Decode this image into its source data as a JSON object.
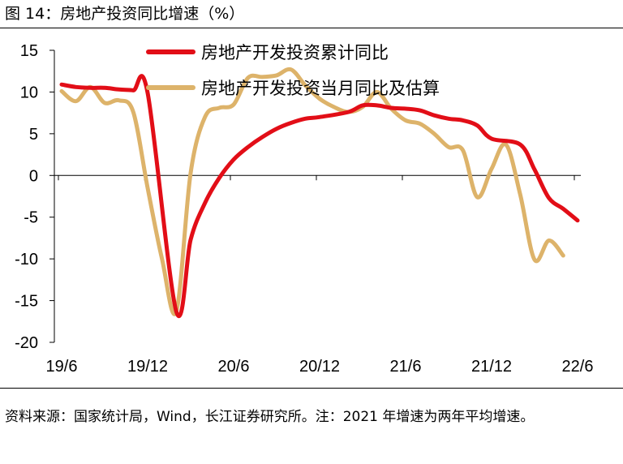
{
  "figure": {
    "title": "图 14：房地产投资同比增速（%）",
    "source": "资料来源：国家统计局，Wind，长江证券研究所。注：2021 年增速为两年平均增速。"
  },
  "chart_data": {
    "type": "line",
    "title": "",
    "xlabel": "",
    "ylabel": "",
    "ylim": [
      -20,
      15
    ],
    "yticks": [
      15,
      10,
      5,
      0,
      -5,
      -10,
      -15,
      -20
    ],
    "xtick_labels": [
      "19/6",
      "19/12",
      "20/6",
      "20/12",
      "21/6",
      "21/12",
      "22/6"
    ],
    "xtick_index": [
      0,
      6,
      12,
      18,
      24,
      30,
      36
    ],
    "grid": false,
    "legend": "top-center",
    "x": [
      "19/6",
      "19/7",
      "19/8",
      "19/9",
      "19/10",
      "19/11",
      "19/12",
      "20/1",
      "20/2",
      "20/3",
      "20/4",
      "20/5",
      "20/6",
      "20/7",
      "20/8",
      "20/9",
      "20/10",
      "20/11",
      "20/12",
      "21/1",
      "21/2",
      "21/3",
      "21/4",
      "21/5",
      "21/6",
      "21/7",
      "21/8",
      "21/9",
      "21/10",
      "21/11",
      "21/12",
      "22/1",
      "22/2",
      "22/3",
      "22/4",
      "22/5",
      "22/6"
    ],
    "series": [
      {
        "name": "房地产开发投资累计同比",
        "color": "#e20e17",
        "values": [
          10.9,
          10.6,
          10.5,
          10.5,
          10.3,
          10.2,
          9.9,
          null,
          -16.3,
          -7.7,
          -3.3,
          -0.3,
          1.9,
          3.4,
          4.6,
          5.6,
          6.3,
          6.8,
          7.0,
          null,
          7.6,
          8.4,
          8.4,
          8.1,
          8.0,
          7.8,
          7.2,
          6.8,
          6.6,
          6.0,
          4.4,
          null,
          3.7,
          0.7,
          -2.7,
          -4.0,
          -5.4
        ]
      },
      {
        "name": "房地产开发投资当月同比及估算",
        "color": "#ddb36a",
        "values": [
          10.1,
          8.9,
          10.6,
          8.7,
          9.0,
          7.6,
          -1.5,
          -10.0,
          -16.3,
          0.3,
          7.0,
          8.1,
          8.5,
          11.7,
          11.8,
          12.0,
          12.7,
          10.8,
          9.2,
          8.2,
          7.6,
          8.2,
          10.0,
          8.0,
          6.6,
          6.2,
          5.0,
          3.4,
          3.0,
          -2.6,
          0.8,
          3.7,
          -2.3,
          -10.1,
          -7.8,
          -9.6,
          null
        ]
      }
    ]
  }
}
